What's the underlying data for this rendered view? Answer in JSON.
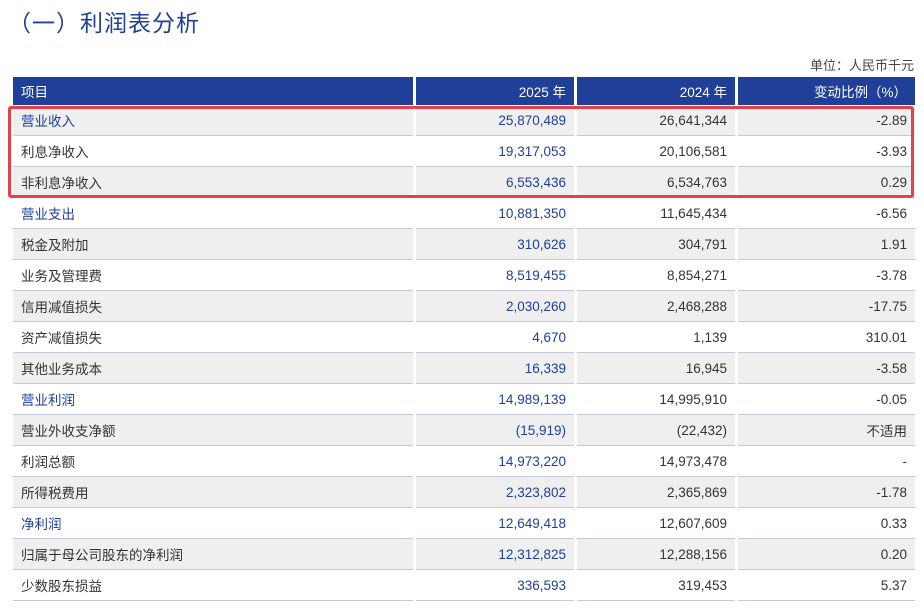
{
  "title": "（一）利润表分析",
  "unit": "单位：人民币千元",
  "table": {
    "headers": [
      "项目",
      "2025 年",
      "2024 年",
      "变动比例（%）"
    ],
    "rows": [
      {
        "item": "营业收入",
        "y2025": "25,870,489",
        "y2024": "26,641,344",
        "change": "-2.89",
        "emphasis": true
      },
      {
        "item": "利息净收入",
        "y2025": "19,317,053",
        "y2024": "20,106,581",
        "change": "-3.93",
        "emphasis": false
      },
      {
        "item": "非利息净收入",
        "y2025": "6,553,436",
        "y2024": "6,534,763",
        "change": "0.29",
        "emphasis": false
      },
      {
        "item": "营业支出",
        "y2025": "10,881,350",
        "y2024": "11,645,434",
        "change": "-6.56",
        "emphasis": true
      },
      {
        "item": "税金及附加",
        "y2025": "310,626",
        "y2024": "304,791",
        "change": "1.91",
        "emphasis": false
      },
      {
        "item": "业务及管理费",
        "y2025": "8,519,455",
        "y2024": "8,854,271",
        "change": "-3.78",
        "emphasis": false
      },
      {
        "item": "信用减值损失",
        "y2025": "2,030,260",
        "y2024": "2,468,288",
        "change": "-17.75",
        "emphasis": false
      },
      {
        "item": "资产减值损失",
        "y2025": "4,670",
        "y2024": "1,139",
        "change": "310.01",
        "emphasis": false
      },
      {
        "item": "其他业务成本",
        "y2025": "16,339",
        "y2024": "16,945",
        "change": "-3.58",
        "emphasis": false
      },
      {
        "item": "营业利润",
        "y2025": "14,989,139",
        "y2024": "14,995,910",
        "change": "-0.05",
        "emphasis": true
      },
      {
        "item": "营业外收支净额",
        "y2025": "(15,919)",
        "y2024": "(22,432)",
        "change": "不适用",
        "emphasis": false
      },
      {
        "item": "利润总额",
        "y2025": "14,973,220",
        "y2024": "14,973,478",
        "change": "-",
        "emphasis": false
      },
      {
        "item": "所得税费用",
        "y2025": "2,323,802",
        "y2024": "2,365,869",
        "change": "-1.78",
        "emphasis": false
      },
      {
        "item": "净利润",
        "y2025": "12,649,418",
        "y2024": "12,607,609",
        "change": "0.33",
        "emphasis": true
      },
      {
        "item": "归属于母公司股东的净利润",
        "y2025": "12,312,825",
        "y2024": "12,288,156",
        "change": "0.20",
        "emphasis": false
      },
      {
        "item": "少数股东损益",
        "y2025": "336,593",
        "y2024": "319,453",
        "change": "5.37",
        "emphasis": false
      }
    ]
  },
  "colors": {
    "header_bg": "#1f3f99",
    "accent_text": "#1f3f99",
    "highlight_border": "#e8404a",
    "row_shade": "#efefef"
  }
}
